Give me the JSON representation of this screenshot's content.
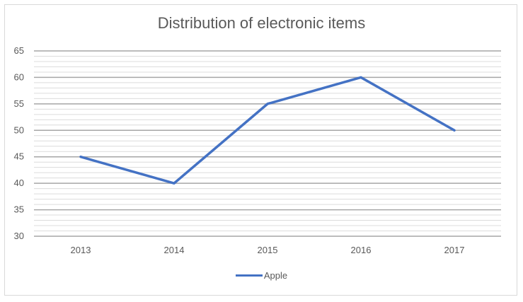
{
  "chart_data": {
    "type": "line",
    "title": "Distribution of electronic items",
    "xlabel": "",
    "ylabel": "",
    "categories": [
      "2013",
      "2014",
      "2015",
      "2016",
      "2017"
    ],
    "series": [
      {
        "name": "Apple",
        "values": [
          45,
          40,
          55,
          60,
          50
        ],
        "color": "#4472c4"
      }
    ],
    "ylim": [
      30,
      65
    ],
    "y_major_ticks": [
      30,
      35,
      40,
      45,
      50,
      55,
      60,
      65
    ],
    "y_minor_step": 1,
    "grid": true,
    "legend_position": "bottom"
  }
}
